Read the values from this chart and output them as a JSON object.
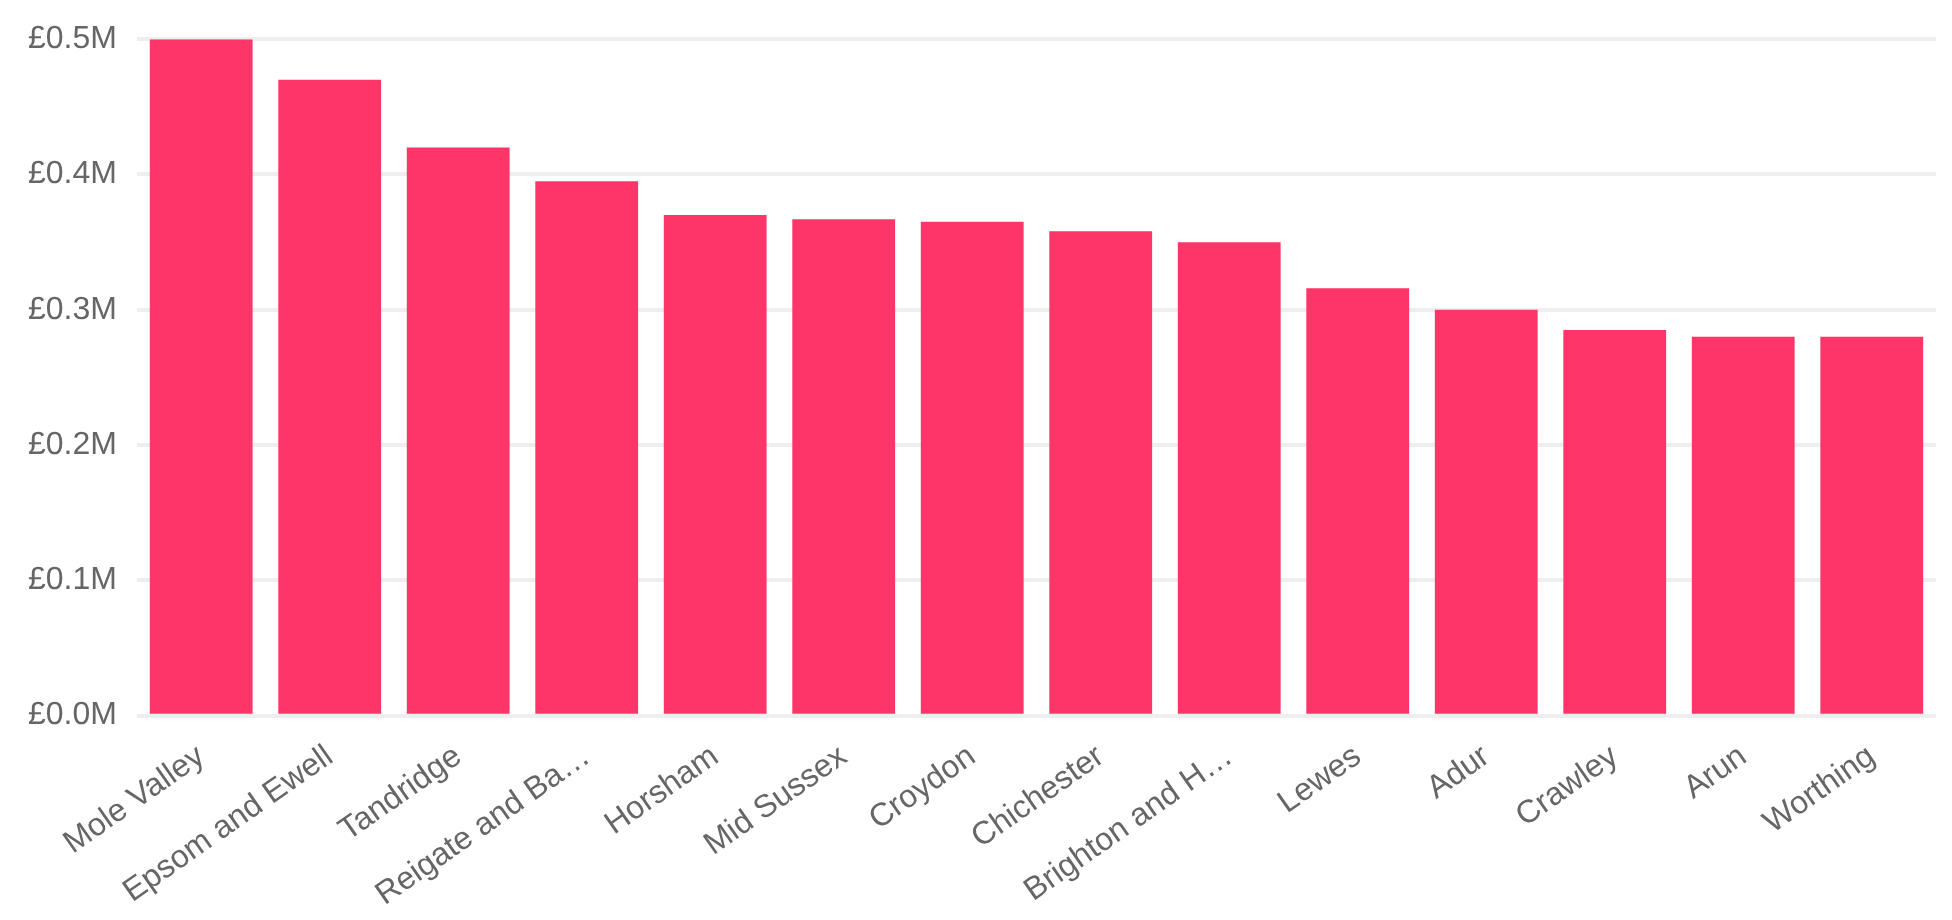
{
  "chart_data": {
    "type": "bar",
    "categories": [
      "Mole Valley",
      "Epsom and Ewell",
      "Tandridge",
      "Reigate and Ba…",
      "Horsham",
      "Mid Sussex",
      "Croydon",
      "Chichester",
      "Brighton and H…",
      "Lewes",
      "Adur",
      "Crawley",
      "Arun",
      "Worthing"
    ],
    "values": [
      0.5,
      0.47,
      0.42,
      0.395,
      0.37,
      0.367,
      0.365,
      0.358,
      0.35,
      0.316,
      0.3,
      0.285,
      0.28,
      0.28
    ],
    "color": "#fd3568",
    "ylim": [
      0,
      0.5
    ],
    "yticks": [
      {
        "value": 0,
        "label": "£0.0M"
      },
      {
        "value": 0.1,
        "label": "£0.1M"
      },
      {
        "value": 0.2,
        "label": "£0.2M"
      },
      {
        "value": 0.3,
        "label": "£0.3M"
      },
      {
        "value": 0.4,
        "label": "£0.4M"
      },
      {
        "value": 0.5,
        "label": "£0.5M"
      }
    ],
    "grid": "y",
    "legend": false
  }
}
